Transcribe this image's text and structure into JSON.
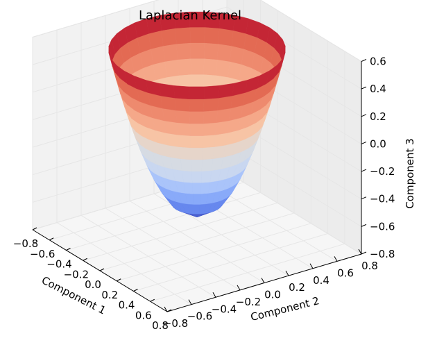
{
  "chart_data": {
    "type": "surface3d",
    "title": "Laplacian Kernel",
    "xlabel": "Component 1",
    "ylabel": "Component 2",
    "zlabel": "Component 3",
    "xlim": [
      -0.8,
      0.8
    ],
    "ylim": [
      -0.8,
      0.8
    ],
    "zlim": [
      -0.8,
      0.6
    ],
    "xticks": [
      "−0.8",
      "−0.6",
      "−0.4",
      "−0.2",
      "0.0",
      "0.2",
      "0.4",
      "0.6",
      "0.8"
    ],
    "yticks": [
      "−0.8",
      "−0.6",
      "−0.4",
      "−0.2",
      "0.0",
      "0.2",
      "0.4",
      "0.6",
      "0.8"
    ],
    "zticks": [
      "−0.8",
      "−0.6",
      "−0.4",
      "−0.2",
      "0.0",
      "0.2",
      "0.4",
      "0.6"
    ],
    "surface": {
      "shape": "paraboloid",
      "center": [
        0.0,
        0.0
      ],
      "bottom_z": -0.62,
      "top_z": 0.6,
      "rim_radius": 0.6,
      "colormap": "coolwarm",
      "color_stops": [
        "#3b4cc0",
        "#6788ee",
        "#9abbff",
        "#c9d7f0",
        "#dddddd",
        "#f7c4a5",
        "#f49a7b",
        "#e36a53",
        "#b40426"
      ]
    },
    "grid": true,
    "panes": "light-gray"
  }
}
